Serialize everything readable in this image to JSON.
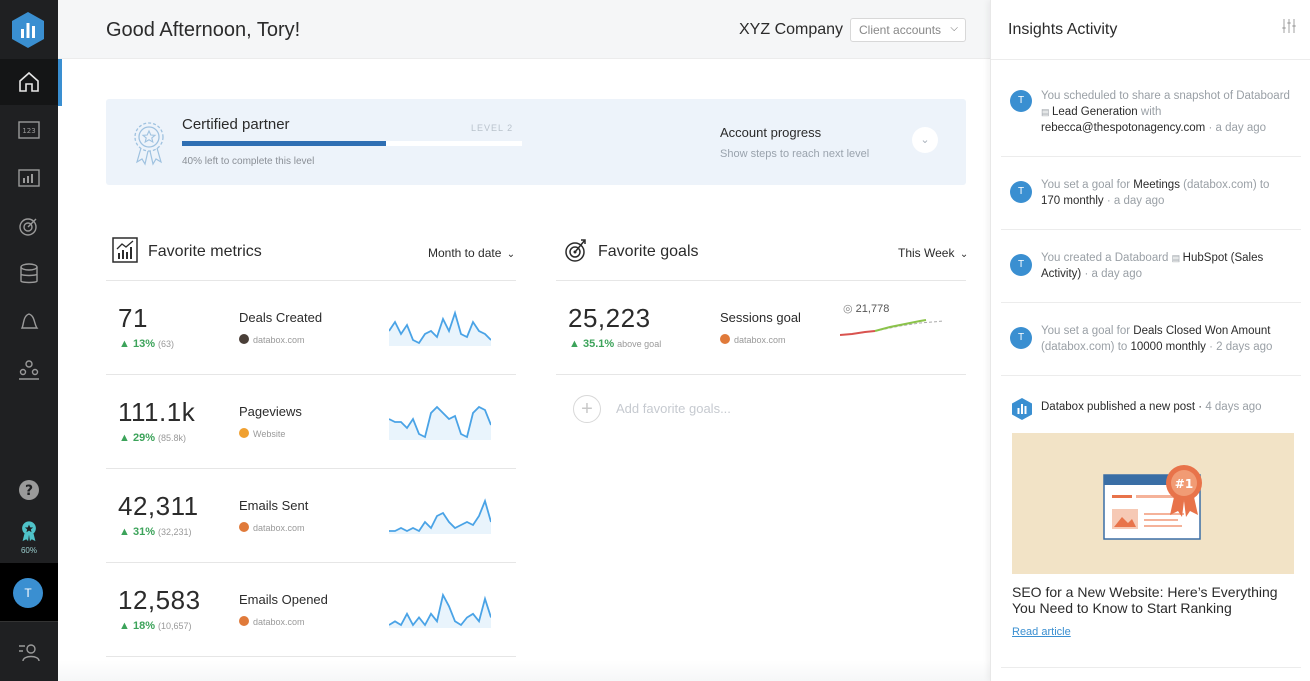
{
  "header": {
    "greeting": "Good Afternoon, Tory!",
    "company": "XYZ Company",
    "client_accounts_label": "Client accounts"
  },
  "sidebar": {
    "badge_percent": "60%",
    "avatar_initial": "T",
    "items": [
      "home",
      "numbers",
      "databoard",
      "goals",
      "data-sources",
      "alerts",
      "team"
    ]
  },
  "partner": {
    "title": "Certified partner",
    "level": "LEVEL 2",
    "progress": 0.6,
    "left_text": "40% left to complete this level",
    "account_progress": "Account progress",
    "account_progress_sub": "Show steps to reach next level"
  },
  "metrics": {
    "title": "Favorite metrics",
    "period": "Month to date",
    "items": [
      {
        "value": "71",
        "change": "13%",
        "prev": "(63)",
        "name": "Deals Created",
        "source": "databox.com",
        "source_color": "#4a3f38",
        "spark": [
          6,
          9,
          5,
          8,
          3,
          2,
          5,
          6,
          4,
          10,
          6,
          12,
          5,
          4,
          9,
          6,
          5,
          3
        ]
      },
      {
        "value": "111.1k",
        "change": "29%",
        "prev": "(85.8k)",
        "name": "Pageviews",
        "source": "Website",
        "source_color": "#f0a030",
        "spark": [
          8,
          7,
          7,
          5,
          8,
          3,
          2,
          10,
          12,
          10,
          8,
          9,
          3,
          2,
          10,
          12,
          11,
          6
        ]
      },
      {
        "value": "42,311",
        "change": "31%",
        "prev": "(32,231)",
        "name": "Emails Sent",
        "source": "databox.com",
        "source_color": "#e07a3a",
        "spark": [
          3,
          3,
          4,
          3,
          4,
          3,
          6,
          4,
          8,
          9,
          6,
          4,
          5,
          6,
          5,
          8,
          13,
          6
        ]
      },
      {
        "value": "12,583",
        "change": "18%",
        "prev": "(10,657)",
        "name": "Emails Opened",
        "source": "databox.com",
        "source_color": "#e07a3a",
        "spark": [
          3,
          4,
          3,
          6,
          3,
          5,
          3,
          6,
          4,
          11,
          8,
          4,
          3,
          5,
          6,
          4,
          10,
          5
        ]
      }
    ]
  },
  "goals": {
    "title": "Favorite goals",
    "period": "This Week",
    "items": [
      {
        "value": "25,223",
        "change": "35.1%",
        "status": "above goal",
        "name": "Sessions goal",
        "source": "databox.com",
        "source_color": "#e07a3a",
        "target": "21,778"
      }
    ],
    "add_label": "Add favorite goals..."
  },
  "insights": {
    "title": "Insights Activity",
    "items": [
      {
        "avatar": "T",
        "pre": "You scheduled to share a snapshot of Databoard ",
        "bold": "Lead Generation",
        "mid": " with ",
        "bold2": "rebecca@thespotonagency.com",
        "ago": "a day ago"
      },
      {
        "avatar": "T",
        "pre": "You set a goal for ",
        "bold": "Meetings",
        "mid": " (databox.com) to ",
        "bold2": "170 monthly",
        "ago": "a day ago"
      },
      {
        "avatar": "T",
        "pre": "You created a Databoard ",
        "bold": "HubSpot (Sales Activity)",
        "mid": "",
        "bold2": "",
        "ago": "a day ago"
      },
      {
        "avatar": "T",
        "pre": "You set a goal for ",
        "bold": "Deals Closed Won Amount",
        "mid": " (databox.com) to ",
        "bold2": "10000 monthly",
        "ago": "2 days ago"
      }
    ],
    "post": {
      "head": "Databox published a new post",
      "ago": "4 days ago",
      "title": "SEO for a New Website: Here’s Everything You Need to Know to Start Ranking",
      "link": "Read article"
    }
  },
  "colors": {
    "accent": "#3a8fd1",
    "positive": "#3ca35a",
    "sidebar": "#1f2022",
    "spark": "#4aa3e6"
  }
}
